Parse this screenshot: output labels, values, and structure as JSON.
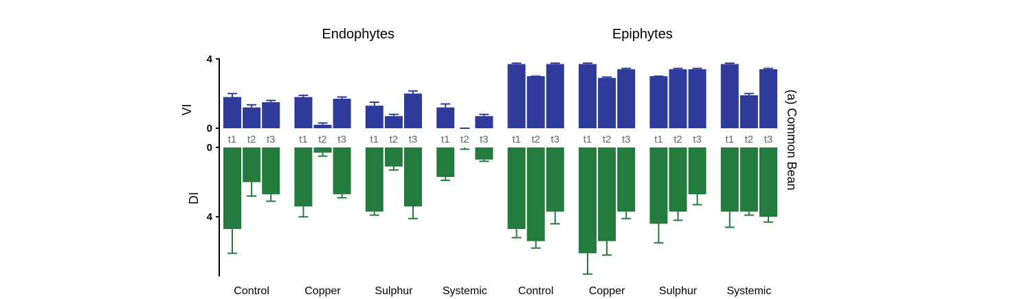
{
  "chart_data": {
    "type": "bar",
    "panel_label": "(a) Common Bean",
    "groups": [
      {
        "label": "Endophytes",
        "categories": [
          "Control",
          "Copper",
          "Sulphur",
          "Systemic"
        ]
      },
      {
        "label": "Epiphytes",
        "categories": [
          "Control",
          "Copper",
          "Sulphur",
          "Systemic"
        ]
      }
    ],
    "time_points": [
      "t1",
      "t2",
      "t3"
    ],
    "series": [
      {
        "name": "VI",
        "ylabel": "VI",
        "ylim": [
          0,
          4
        ],
        "yticks": [
          0,
          4
        ],
        "color": "#2f3b9a",
        "direction": "up",
        "values": [
          [
            1.8,
            1.2,
            1.5
          ],
          [
            1.8,
            0.2,
            1.7
          ],
          [
            1.3,
            0.7,
            2.0
          ],
          [
            1.2,
            0.0,
            0.7
          ],
          [
            3.7,
            3.0,
            3.7
          ],
          [
            3.7,
            2.9,
            3.4
          ],
          [
            3.0,
            3.4,
            3.4
          ],
          [
            3.7,
            1.9,
            3.4
          ]
        ],
        "errors": [
          [
            0.2,
            0.15,
            0.1
          ],
          [
            0.1,
            0.1,
            0.1
          ],
          [
            0.2,
            0.1,
            0.15
          ],
          [
            0.2,
            0.0,
            0.1
          ],
          [
            0.05,
            0.0,
            0.05
          ],
          [
            0.05,
            0.05,
            0.05
          ],
          [
            0.0,
            0.05,
            0.05
          ],
          [
            0.05,
            0.1,
            0.05
          ]
        ]
      },
      {
        "name": "DI",
        "ylabel": "DI",
        "ylim": [
          0,
          7.5
        ],
        "yticks": [
          0,
          4
        ],
        "color": "#237b3e",
        "direction": "down",
        "values": [
          [
            4.7,
            2.0,
            2.7
          ],
          [
            3.4,
            0.3,
            2.7
          ],
          [
            3.7,
            1.1,
            3.4
          ],
          [
            1.7,
            0.0,
            0.7
          ],
          [
            4.7,
            5.4,
            3.7
          ],
          [
            6.1,
            5.4,
            3.7
          ],
          [
            4.4,
            3.7,
            2.7
          ],
          [
            3.7,
            3.7,
            4.0
          ]
        ],
        "errors": [
          [
            1.4,
            0.8,
            0.4
          ],
          [
            0.6,
            0.2,
            0.2
          ],
          [
            0.2,
            0.2,
            0.7
          ],
          [
            0.2,
            0.1,
            0.1
          ],
          [
            0.5,
            0.4,
            0.7
          ],
          [
            1.2,
            0.8,
            0.4
          ],
          [
            1.1,
            0.5,
            0.6
          ],
          [
            0.9,
            0.2,
            0.3
          ]
        ]
      }
    ]
  }
}
